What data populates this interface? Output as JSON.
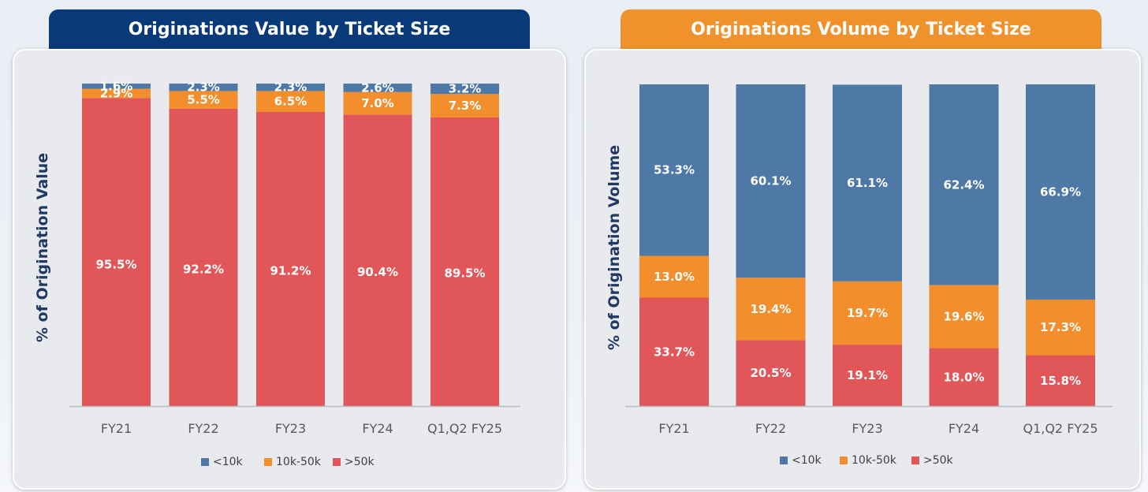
{
  "colors": {
    "lt10k": "#4e79a7",
    "10k50k": "#f28e2b",
    "gt50k": "#e15759",
    "header_left": "#083a7a",
    "header_right": "#f0922b"
  },
  "left": {
    "title": "Originations Value by Ticket Size"
  },
  "right": {
    "title": "Originations Volume by Ticket Size"
  },
  "chart_data": [
    {
      "type": "bar",
      "stacked": true,
      "title": "Originations Value by Ticket Size",
      "ylabel": "% of Origination Value",
      "xlabel": "",
      "categories": [
        "FY21",
        "FY22",
        "FY23",
        "FY24",
        "Q1,Q2 FY25"
      ],
      "series": [
        {
          "name": ">50k",
          "values": [
            95.5,
            92.2,
            91.2,
            90.4,
            89.5
          ],
          "labels": [
            "95.5%",
            "92.2%",
            "91.2%",
            "90.4%",
            "89.5%"
          ]
        },
        {
          "name": "10k-50k",
          "values": [
            2.9,
            5.5,
            6.5,
            7.0,
            7.3
          ],
          "labels": [
            "2.9%",
            "5.5%",
            "6.5%",
            "7.0%",
            "7.3%"
          ]
        },
        {
          "name": "<10k",
          "values": [
            1.6,
            2.3,
            2.3,
            2.6,
            3.2
          ],
          "labels": [
            "1.6%",
            "2.3%",
            "2.3%",
            "2.6%",
            "3.2%"
          ]
        }
      ],
      "legend": [
        "<10k",
        "10k-50k",
        ">50k"
      ],
      "legend_position": "bottom",
      "ylim": [
        0,
        100
      ],
      "grid": false
    },
    {
      "type": "bar",
      "stacked": true,
      "title": "Originations Volume by Ticket Size",
      "ylabel": "% of Origination Volume",
      "xlabel": "",
      "categories": [
        "FY21",
        "FY22",
        "FY23",
        "FY24",
        "Q1,Q2 FY25"
      ],
      "series": [
        {
          "name": ">50k",
          "values": [
            33.7,
            20.5,
            19.1,
            18.0,
            15.8
          ],
          "labels": [
            "33.7%",
            "20.5%",
            "19.1%",
            "18.0%",
            "15.8%"
          ]
        },
        {
          "name": "10k-50k",
          "values": [
            13.0,
            19.4,
            19.7,
            19.6,
            17.3
          ],
          "labels": [
            "13.0%",
            "19.4%",
            "19.7%",
            "19.6%",
            "17.3%"
          ]
        },
        {
          "name": "<10k",
          "values": [
            53.3,
            60.1,
            61.1,
            62.4,
            66.9
          ],
          "labels": [
            "53.3%",
            "60.1%",
            "61.1%",
            "62.4%",
            "66.9%"
          ]
        }
      ],
      "legend": [
        "<10k",
        "10k-50k",
        ">50k"
      ],
      "legend_position": "bottom",
      "ylim": [
        0,
        100
      ],
      "grid": false
    }
  ]
}
